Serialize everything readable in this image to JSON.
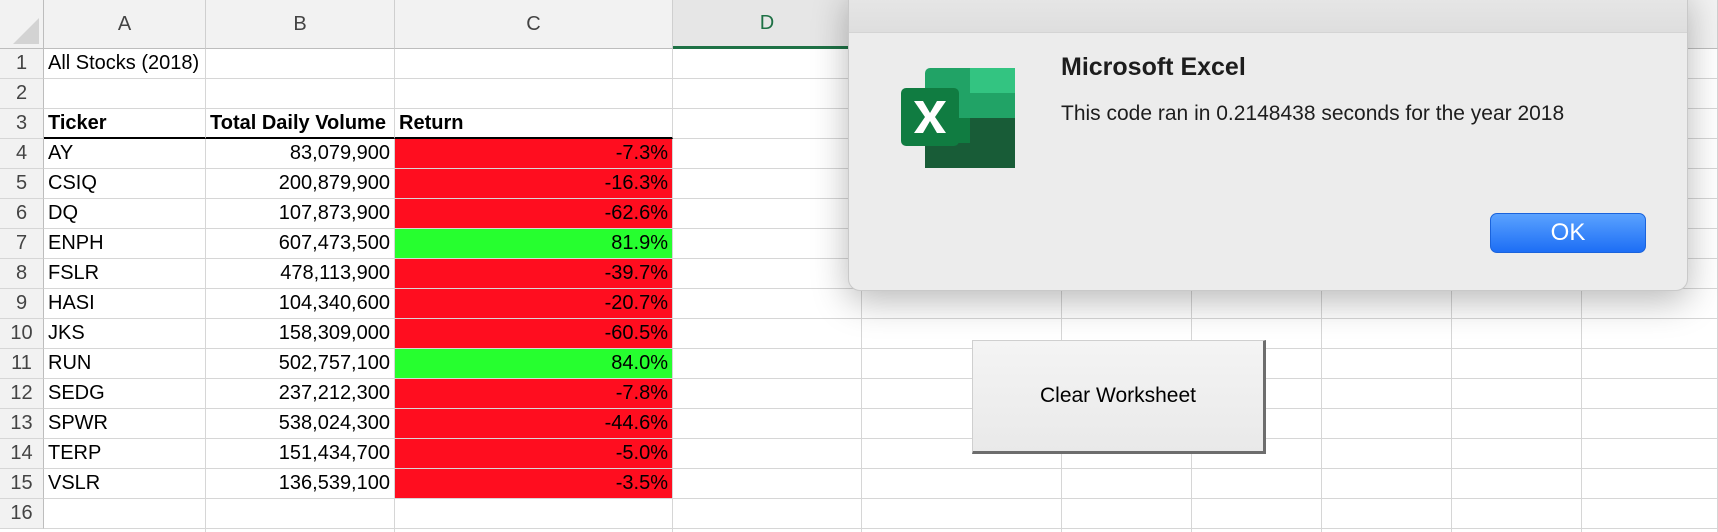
{
  "columns": [
    "A",
    "B",
    "C",
    "D"
  ],
  "rows": [
    "1",
    "2",
    "3",
    "4",
    "5",
    "6",
    "7",
    "8",
    "9",
    "10",
    "11",
    "12",
    "13",
    "14",
    "15",
    "16"
  ],
  "sheet": {
    "title": "All Stocks (2018)",
    "headers": {
      "ticker": "Ticker",
      "volume": "Total Daily Volume",
      "return": "Return"
    },
    "data": [
      {
        "ticker": "AY",
        "volume": "83,079,900",
        "return": "-7.3%",
        "positive": false
      },
      {
        "ticker": "CSIQ",
        "volume": "200,879,900",
        "return": "-16.3%",
        "positive": false
      },
      {
        "ticker": "DQ",
        "volume": "107,873,900",
        "return": "-62.6%",
        "positive": false
      },
      {
        "ticker": "ENPH",
        "volume": "607,473,500",
        "return": "81.9%",
        "positive": true
      },
      {
        "ticker": "FSLR",
        "volume": "478,113,900",
        "return": "-39.7%",
        "positive": false
      },
      {
        "ticker": "HASI",
        "volume": "104,340,600",
        "return": "-20.7%",
        "positive": false
      },
      {
        "ticker": "JKS",
        "volume": "158,309,000",
        "return": "-60.5%",
        "positive": false
      },
      {
        "ticker": "RUN",
        "volume": "502,757,100",
        "return": "84.0%",
        "positive": true
      },
      {
        "ticker": "SEDG",
        "volume": "237,212,300",
        "return": "-7.8%",
        "positive": false
      },
      {
        "ticker": "SPWR",
        "volume": "538,024,300",
        "return": "-44.6%",
        "positive": false
      },
      {
        "ticker": "TERP",
        "volume": "151,434,700",
        "return": "-5.0%",
        "positive": false
      },
      {
        "ticker": "VSLR",
        "volume": "136,539,100",
        "return": "-3.5%",
        "positive": false
      }
    ]
  },
  "colors": {
    "negative": "#ff0d1f",
    "positive": "#26ff2f",
    "ok_button": "#1d6ef5",
    "active_column": "#1e7145"
  },
  "buttons": {
    "clear_worksheet": "Clear Worksheet"
  },
  "dialog": {
    "title": "Microsoft Excel",
    "message": "This code ran in 0.2148438 seconds for the year 2018",
    "ok_label": "OK",
    "icon": "excel-logo-icon"
  }
}
